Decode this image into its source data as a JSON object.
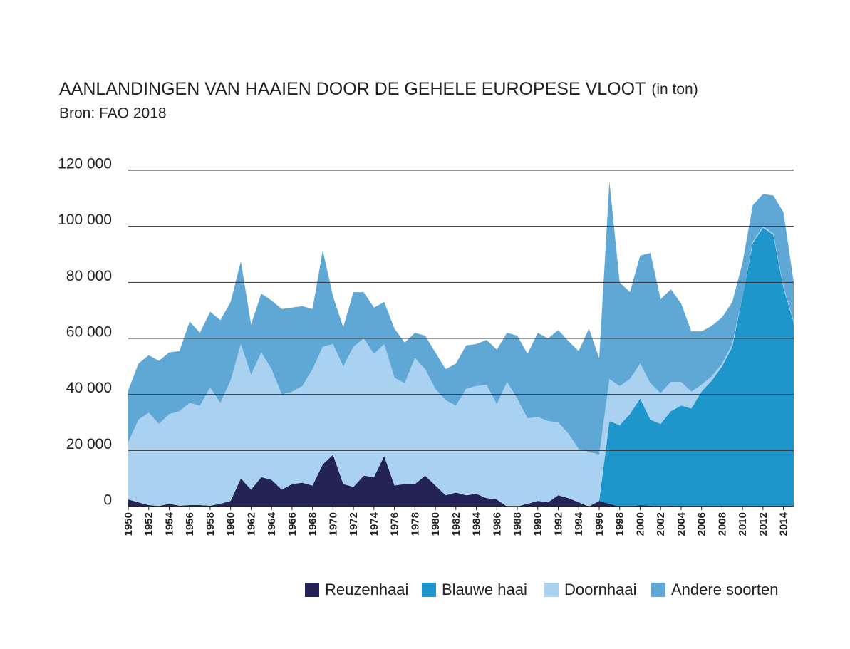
{
  "chart_data": {
    "type": "stacked_area",
    "title": "AANLANDINGEN VAN HAAIEN DOOR DE GEHELE EUROPESE VLOOT",
    "title_suffix": "(in ton)",
    "subtitle": "Bron: FAO 2018",
    "x": [
      1950,
      1951,
      1952,
      1953,
      1954,
      1955,
      1956,
      1957,
      1958,
      1959,
      1960,
      1961,
      1962,
      1963,
      1964,
      1965,
      1966,
      1967,
      1968,
      1969,
      1970,
      1971,
      1972,
      1973,
      1974,
      1975,
      1976,
      1977,
      1978,
      1979,
      1980,
      1981,
      1982,
      1983,
      1984,
      1985,
      1986,
      1987,
      1988,
      1989,
      1990,
      1991,
      1992,
      1993,
      1994,
      1995,
      1996,
      1997,
      1998,
      1999,
      2000,
      2001,
      2002,
      2003,
      2004,
      2005,
      2006,
      2007,
      2008,
      2009,
      2010,
      2011,
      2012,
      2013,
      2014,
      2015
    ],
    "xlim": [
      1950,
      2015
    ],
    "xticks": [
      1950,
      1952,
      1954,
      1956,
      1958,
      1960,
      1962,
      1964,
      1966,
      1968,
      1970,
      1972,
      1974,
      1976,
      1978,
      1980,
      1982,
      1984,
      1986,
      1988,
      1990,
      1992,
      1994,
      1996,
      1998,
      2000,
      2002,
      2004,
      2006,
      2008,
      2010,
      2012,
      2014
    ],
    "ylim": [
      0,
      120000
    ],
    "yticks": [
      0,
      {
        "value": 20000,
        "label": "20 000"
      },
      {
        "value": 40000,
        "label": "40 000"
      },
      {
        "value": 60000,
        "label": "60 000"
      },
      {
        "value": 80000,
        "label": "80 000"
      },
      {
        "value": 100000,
        "label": "100 000"
      },
      {
        "value": 120000,
        "label": "120 000"
      }
    ],
    "grid": true,
    "legend": "bottom-right",
    "series": [
      {
        "name": "Reuzenhaai",
        "color": "#232355",
        "values": [
          2500,
          1500,
          500,
          200,
          1000,
          300,
          500,
          500,
          300,
          1000,
          2000,
          10000,
          6000,
          10500,
          9500,
          6000,
          8000,
          8500,
          7500,
          15000,
          18500,
          8000,
          7000,
          11000,
          10500,
          18000,
          7500,
          8000,
          8000,
          11000,
          7500,
          4000,
          5000,
          4000,
          4500,
          3000,
          2500,
          0,
          0,
          1000,
          2000,
          1500,
          4000,
          3000,
          1500,
          0,
          2000,
          1000,
          0,
          0,
          500,
          300,
          0,
          300,
          0,
          0,
          0,
          0,
          0,
          0,
          0,
          0,
          0,
          0,
          0,
          0
        ]
      },
      {
        "name": "Blauwe haai",
        "color": "#1e96cc",
        "values": [
          0,
          0,
          0,
          0,
          0,
          0,
          0,
          0,
          0,
          0,
          0,
          0,
          0,
          0,
          0,
          0,
          0,
          0,
          0,
          0,
          0,
          0,
          0,
          0,
          0,
          0,
          0,
          0,
          0,
          0,
          0,
          0,
          0,
          0,
          0,
          0,
          0,
          0,
          0,
          0,
          0,
          0,
          0,
          0,
          0,
          0,
          0,
          29500,
          29000,
          33000,
          38000,
          30700,
          29500,
          33700,
          36000,
          35000,
          41000,
          45000,
          50000,
          57000,
          75000,
          94000,
          99500,
          97000,
          78000,
          65500
        ]
      },
      {
        "name": "Doornhaai",
        "color": "#aad1f0",
        "values": [
          20500,
          29500,
          33000,
          29300,
          32000,
          33700,
          36500,
          35500,
          42200,
          36000,
          43000,
          48000,
          41000,
          44500,
          39500,
          34000,
          33000,
          34500,
          41500,
          42000,
          39500,
          42000,
          50000,
          49000,
          44000,
          40000,
          38500,
          36000,
          45000,
          38000,
          34500,
          34000,
          31000,
          38000,
          38500,
          40500,
          34000,
          44500,
          38500,
          30500,
          30000,
          29000,
          26000,
          23000,
          19000,
          19500,
          16500,
          15000,
          14000,
          12500,
          12500,
          13000,
          11000,
          10500,
          8500,
          6000,
          2500,
          1500,
          1000,
          1000,
          0,
          500,
          500,
          500,
          500,
          500
        ]
      },
      {
        "name": "Andere soorten",
        "color": "#5fa8d6",
        "values": [
          18500,
          20000,
          20500,
          22500,
          22000,
          21500,
          29000,
          26000,
          27000,
          29500,
          28000,
          29500,
          18000,
          21000,
          24500,
          30500,
          30000,
          28500,
          21500,
          34500,
          17000,
          14000,
          19500,
          16500,
          16500,
          15000,
          17500,
          14500,
          9000,
          12000,
          13000,
          11000,
          15000,
          15500,
          15000,
          16000,
          19500,
          17500,
          22500,
          23000,
          30000,
          29500,
          33000,
          33000,
          35000,
          44000,
          34500,
          70500,
          37000,
          31000,
          38500,
          46500,
          33500,
          33000,
          28000,
          21500,
          19000,
          18000,
          16500,
          15000,
          12000,
          13000,
          11500,
          13500,
          26500,
          14000
        ]
      }
    ]
  }
}
